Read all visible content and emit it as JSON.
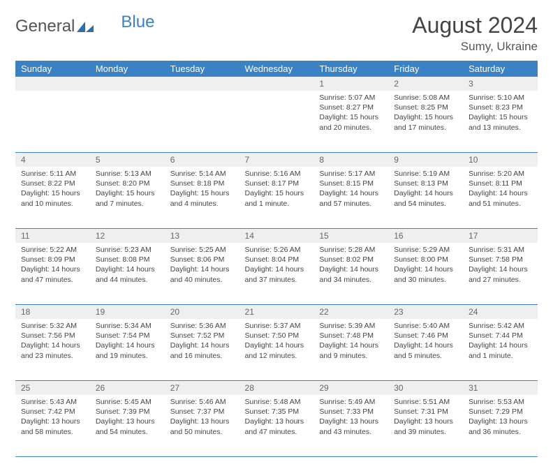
{
  "brand": {
    "word1": "General",
    "word2": "Blue"
  },
  "title": "August 2024",
  "location": "Sumy, Ukraine",
  "colors": {
    "header_bg": "#3b82c4",
    "header_text": "#ffffff",
    "daynum_bg": "#efefef",
    "rule": "#3b82c4",
    "body_text": "#444444"
  },
  "weekdays": [
    "Sunday",
    "Monday",
    "Tuesday",
    "Wednesday",
    "Thursday",
    "Friday",
    "Saturday"
  ],
  "weeks": [
    [
      null,
      null,
      null,
      null,
      {
        "n": "1",
        "sr": "5:07 AM",
        "ss": "8:27 PM",
        "dl": "15 hours and 20 minutes."
      },
      {
        "n": "2",
        "sr": "5:08 AM",
        "ss": "8:25 PM",
        "dl": "15 hours and 17 minutes."
      },
      {
        "n": "3",
        "sr": "5:10 AM",
        "ss": "8:23 PM",
        "dl": "15 hours and 13 minutes."
      }
    ],
    [
      {
        "n": "4",
        "sr": "5:11 AM",
        "ss": "8:22 PM",
        "dl": "15 hours and 10 minutes."
      },
      {
        "n": "5",
        "sr": "5:13 AM",
        "ss": "8:20 PM",
        "dl": "15 hours and 7 minutes."
      },
      {
        "n": "6",
        "sr": "5:14 AM",
        "ss": "8:18 PM",
        "dl": "15 hours and 4 minutes."
      },
      {
        "n": "7",
        "sr": "5:16 AM",
        "ss": "8:17 PM",
        "dl": "15 hours and 1 minute."
      },
      {
        "n": "8",
        "sr": "5:17 AM",
        "ss": "8:15 PM",
        "dl": "14 hours and 57 minutes."
      },
      {
        "n": "9",
        "sr": "5:19 AM",
        "ss": "8:13 PM",
        "dl": "14 hours and 54 minutes."
      },
      {
        "n": "10",
        "sr": "5:20 AM",
        "ss": "8:11 PM",
        "dl": "14 hours and 51 minutes."
      }
    ],
    [
      {
        "n": "11",
        "sr": "5:22 AM",
        "ss": "8:09 PM",
        "dl": "14 hours and 47 minutes."
      },
      {
        "n": "12",
        "sr": "5:23 AM",
        "ss": "8:08 PM",
        "dl": "14 hours and 44 minutes."
      },
      {
        "n": "13",
        "sr": "5:25 AM",
        "ss": "8:06 PM",
        "dl": "14 hours and 40 minutes."
      },
      {
        "n": "14",
        "sr": "5:26 AM",
        "ss": "8:04 PM",
        "dl": "14 hours and 37 minutes."
      },
      {
        "n": "15",
        "sr": "5:28 AM",
        "ss": "8:02 PM",
        "dl": "14 hours and 34 minutes."
      },
      {
        "n": "16",
        "sr": "5:29 AM",
        "ss": "8:00 PM",
        "dl": "14 hours and 30 minutes."
      },
      {
        "n": "17",
        "sr": "5:31 AM",
        "ss": "7:58 PM",
        "dl": "14 hours and 27 minutes."
      }
    ],
    [
      {
        "n": "18",
        "sr": "5:32 AM",
        "ss": "7:56 PM",
        "dl": "14 hours and 23 minutes."
      },
      {
        "n": "19",
        "sr": "5:34 AM",
        "ss": "7:54 PM",
        "dl": "14 hours and 19 minutes."
      },
      {
        "n": "20",
        "sr": "5:36 AM",
        "ss": "7:52 PM",
        "dl": "14 hours and 16 minutes."
      },
      {
        "n": "21",
        "sr": "5:37 AM",
        "ss": "7:50 PM",
        "dl": "14 hours and 12 minutes."
      },
      {
        "n": "22",
        "sr": "5:39 AM",
        "ss": "7:48 PM",
        "dl": "14 hours and 9 minutes."
      },
      {
        "n": "23",
        "sr": "5:40 AM",
        "ss": "7:46 PM",
        "dl": "14 hours and 5 minutes."
      },
      {
        "n": "24",
        "sr": "5:42 AM",
        "ss": "7:44 PM",
        "dl": "14 hours and 1 minute."
      }
    ],
    [
      {
        "n": "25",
        "sr": "5:43 AM",
        "ss": "7:42 PM",
        "dl": "13 hours and 58 minutes."
      },
      {
        "n": "26",
        "sr": "5:45 AM",
        "ss": "7:39 PM",
        "dl": "13 hours and 54 minutes."
      },
      {
        "n": "27",
        "sr": "5:46 AM",
        "ss": "7:37 PM",
        "dl": "13 hours and 50 minutes."
      },
      {
        "n": "28",
        "sr": "5:48 AM",
        "ss": "7:35 PM",
        "dl": "13 hours and 47 minutes."
      },
      {
        "n": "29",
        "sr": "5:49 AM",
        "ss": "7:33 PM",
        "dl": "13 hours and 43 minutes."
      },
      {
        "n": "30",
        "sr": "5:51 AM",
        "ss": "7:31 PM",
        "dl": "13 hours and 39 minutes."
      },
      {
        "n": "31",
        "sr": "5:53 AM",
        "ss": "7:29 PM",
        "dl": "13 hours and 36 minutes."
      }
    ]
  ],
  "labels": {
    "sunrise": "Sunrise: ",
    "sunset": "Sunset: ",
    "daylight": "Daylight: "
  }
}
